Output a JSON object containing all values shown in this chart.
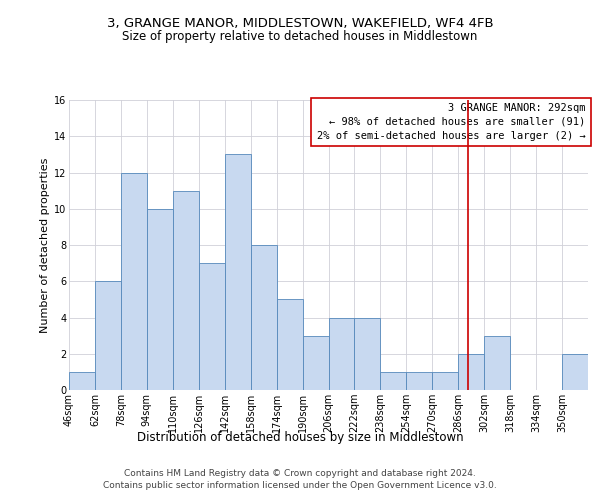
{
  "title_line1": "3, GRANGE MANOR, MIDDLESTOWN, WAKEFIELD, WF4 4FB",
  "title_line2": "Size of property relative to detached houses in Middlestown",
  "xlabel": "Distribution of detached houses by size in Middlestown",
  "ylabel": "Number of detached properties",
  "footer_line1": "Contains HM Land Registry data © Crown copyright and database right 2024.",
  "footer_line2": "Contains public sector information licensed under the Open Government Licence v3.0.",
  "bar_edges": [
    46,
    62,
    78,
    94,
    110,
    126,
    142,
    158,
    174,
    190,
    206,
    222,
    238,
    254,
    270,
    286,
    302,
    318,
    334,
    350,
    366
  ],
  "bar_heights": [
    1,
    6,
    12,
    10,
    11,
    7,
    13,
    8,
    5,
    3,
    4,
    4,
    1,
    1,
    1,
    2,
    3,
    0,
    0,
    2,
    0
  ],
  "bar_color": "#c8d9f0",
  "bar_edge_color": "#5588bb",
  "property_line_x": 292,
  "annotation_text": "3 GRANGE MANOR: 292sqm\n← 98% of detached houses are smaller (91)\n2% of semi-detached houses are larger (2) →",
  "annotation_box_color": "#cc0000",
  "ylim": [
    0,
    16
  ],
  "yticks": [
    0,
    2,
    4,
    6,
    8,
    10,
    12,
    14,
    16
  ],
  "grid_color": "#d0d0d8",
  "background_color": "#ffffff",
  "title_fontsize": 9.5,
  "subtitle_fontsize": 8.5,
  "ylabel_fontsize": 8,
  "xlabel_fontsize": 8.5,
  "tick_fontsize": 7,
  "annotation_fontsize": 7.5,
  "footer_fontsize": 6.5
}
